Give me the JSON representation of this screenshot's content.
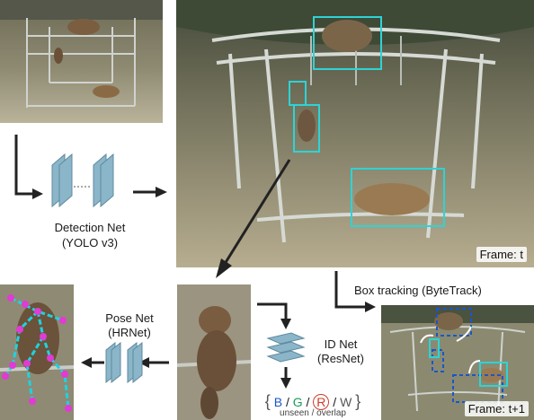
{
  "stages": {
    "detection": {
      "title": "Detection Net",
      "model": "(YOLO v3)"
    },
    "box_tracking": {
      "title": "Box tracking (ByteTrack)"
    },
    "pose": {
      "title": "Pose Net",
      "model": "(HRNet)"
    },
    "id": {
      "title": "ID Net",
      "model": "(ResNet)"
    }
  },
  "frames": {
    "current": "Frame: t",
    "next": "Frame: t+1"
  },
  "id_classes": {
    "open_brace": "{",
    "b": "B",
    "sep1": "/",
    "g": "G",
    "sep2": "/",
    "r": "R",
    "sep3": "/",
    "w": "W",
    "close_brace": "}",
    "note": "unseen / overlap"
  },
  "colors": {
    "box": "#2ed3d6",
    "track_box": "#1a56c9",
    "keypoint": "#e23ad4",
    "skeleton": "#1fd2e0",
    "net_block": "#8bb6c9",
    "arrow": "#222222",
    "b": "#1a57c9",
    "g": "#1a9a5a",
    "r": "#d03a2a",
    "w": "#555555"
  }
}
